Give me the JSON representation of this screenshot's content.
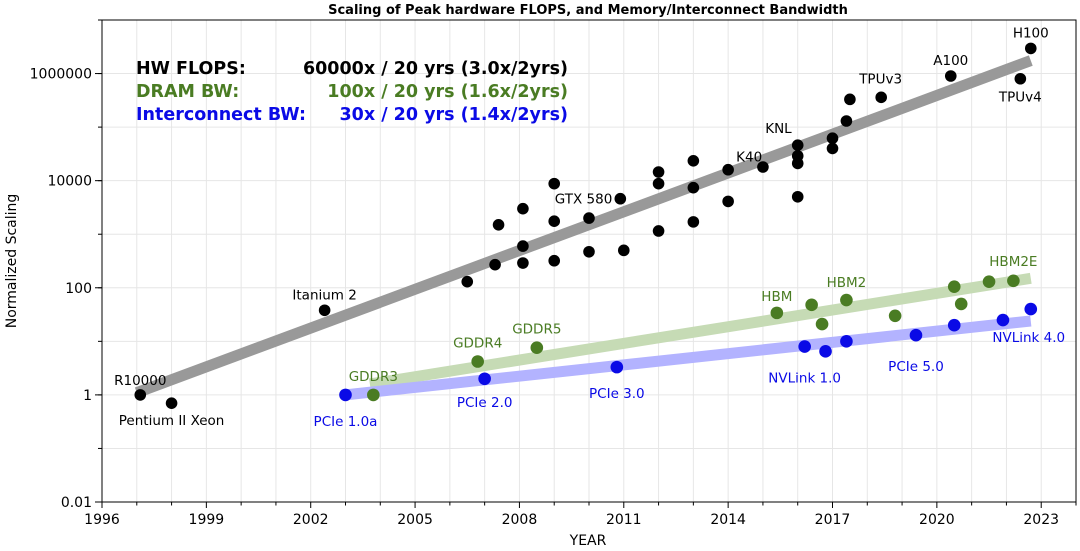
{
  "chart_data": {
    "type": "scatter",
    "title": "Scaling of Peak hardware FLOPS, and Memory/Interconnect Bandwidth",
    "xlabel": "YEAR",
    "ylabel": "Normalized Scaling",
    "xlim": [
      1996,
      2024
    ],
    "ylim": [
      0.01,
      10000000
    ],
    "y_scale": "log",
    "grid": true,
    "x_ticks": [
      1996,
      1999,
      2002,
      2005,
      2008,
      2011,
      2014,
      2017,
      2020,
      2023
    ],
    "y_ticks": [
      0.01,
      1,
      100,
      10000,
      1000000
    ],
    "y_tick_labels": [
      "0.01",
      "1",
      "100",
      "10000",
      "1000000"
    ],
    "colors": {
      "flops": "#000000",
      "dram": "#4a7c23",
      "interconnect": "#0a0ae6",
      "flops_trend": "#999999",
      "dram_trend": "#c6dbb5",
      "interconnect_trend": "#b3b3ff"
    },
    "summary": {
      "flops": {
        "label": "HW FLOPS:",
        "value": "60000x / 20 yrs (3.0x/2yrs)"
      },
      "dram": {
        "label": "DRAM BW:",
        "value": "100x / 20 yrs (1.6x/2yrs)"
      },
      "interconnect": {
        "label": "Interconnect BW:",
        "value": "30x / 20 yrs (1.4x/2yrs)"
      }
    },
    "series": [
      {
        "key": "flops",
        "points": [
          {
            "x": 1997.1,
            "y": 1,
            "label": "R10000"
          },
          {
            "x": 1998.0,
            "y": 0.7,
            "label": "Pentium II Xeon"
          },
          {
            "x": 2002.4,
            "y": 38,
            "label": "Itanium 2"
          },
          {
            "x": 2006.5,
            "y": 130
          },
          {
            "x": 2007.3,
            "y": 270
          },
          {
            "x": 2007.4,
            "y": 1500
          },
          {
            "x": 2008.1,
            "y": 290
          },
          {
            "x": 2008.1,
            "y": 600
          },
          {
            "x": 2008.1,
            "y": 3000
          },
          {
            "x": 2009.0,
            "y": 320
          },
          {
            "x": 2009.0,
            "y": 1750
          },
          {
            "x": 2009.0,
            "y": 8800
          },
          {
            "x": 2010.0,
            "y": 470
          },
          {
            "x": 2010.0,
            "y": 2000
          },
          {
            "x": 2010.9,
            "y": 4600,
            "label": "GTX 580"
          },
          {
            "x": 2011.0,
            "y": 500
          },
          {
            "x": 2012.0,
            "y": 1150
          },
          {
            "x": 2012.0,
            "y": 8800
          },
          {
            "x": 2012.0,
            "y": 14500
          },
          {
            "x": 2013.0,
            "y": 1700
          },
          {
            "x": 2013.0,
            "y": 7400
          },
          {
            "x": 2013.0,
            "y": 23500
          },
          {
            "x": 2014.0,
            "y": 4100
          },
          {
            "x": 2014.0,
            "y": 16000,
            "label": "K40"
          },
          {
            "x": 2015.0,
            "y": 18000
          },
          {
            "x": 2016.0,
            "y": 5000
          },
          {
            "x": 2016.0,
            "y": 21000
          },
          {
            "x": 2016.0,
            "y": 29000
          },
          {
            "x": 2016.0,
            "y": 46000,
            "label": "KNL"
          },
          {
            "x": 2017.0,
            "y": 40000
          },
          {
            "x": 2017.0,
            "y": 62000
          },
          {
            "x": 2017.4,
            "y": 130000
          },
          {
            "x": 2017.5,
            "y": 330000
          },
          {
            "x": 2018.4,
            "y": 360000,
            "label": "TPUv3"
          },
          {
            "x": 2020.4,
            "y": 900000,
            "label": "A100"
          },
          {
            "x": 2022.4,
            "y": 800000,
            "label": "TPUv4"
          },
          {
            "x": 2022.7,
            "y": 2950000,
            "label": "H100"
          }
        ]
      },
      {
        "key": "dram",
        "points": [
          {
            "x": 2003.8,
            "y": 1,
            "label": "GDDR3"
          },
          {
            "x": 2006.8,
            "y": 4.2,
            "label": "GDDR4"
          },
          {
            "x": 2008.5,
            "y": 7.6,
            "label": "GDDR5"
          },
          {
            "x": 2015.4,
            "y": 34,
            "label": "HBM"
          },
          {
            "x": 2016.4,
            "y": 48
          },
          {
            "x": 2016.7,
            "y": 21
          },
          {
            "x": 2017.4,
            "y": 59,
            "label": "HBM2"
          },
          {
            "x": 2018.8,
            "y": 30
          },
          {
            "x": 2020.5,
            "y": 105
          },
          {
            "x": 2020.7,
            "y": 50
          },
          {
            "x": 2021.5,
            "y": 130
          },
          {
            "x": 2022.2,
            "y": 135,
            "label": "HBM2E"
          }
        ]
      },
      {
        "key": "interconnect",
        "points": [
          {
            "x": 2003.0,
            "y": 1,
            "label": "PCIe 1.0a"
          },
          {
            "x": 2007.0,
            "y": 2,
            "label": "PCIe 2.0"
          },
          {
            "x": 2010.8,
            "y": 3.3,
            "label": "PCIe 3.0"
          },
          {
            "x": 2016.2,
            "y": 8,
            "label": "NVLink 1.0"
          },
          {
            "x": 2016.8,
            "y": 6.5
          },
          {
            "x": 2017.4,
            "y": 10
          },
          {
            "x": 2019.4,
            "y": 13,
            "label": "PCIe 5.0"
          },
          {
            "x": 2020.5,
            "y": 20
          },
          {
            "x": 2021.9,
            "y": 25
          },
          {
            "x": 2022.7,
            "y": 40,
            "label": "NVLink 4.0"
          }
        ]
      }
    ],
    "trendlines": [
      {
        "key": "flops",
        "x": [
          1997.0,
          2022.7
        ],
        "y": [
          1.1,
          1750000
        ]
      },
      {
        "key": "dram",
        "x": [
          2003.7,
          2022.7
        ],
        "y": [
          1.6,
          150
        ]
      },
      {
        "key": "interconnect",
        "x": [
          2003.0,
          2022.7
        ],
        "y": [
          1,
          24
        ]
      }
    ]
  }
}
